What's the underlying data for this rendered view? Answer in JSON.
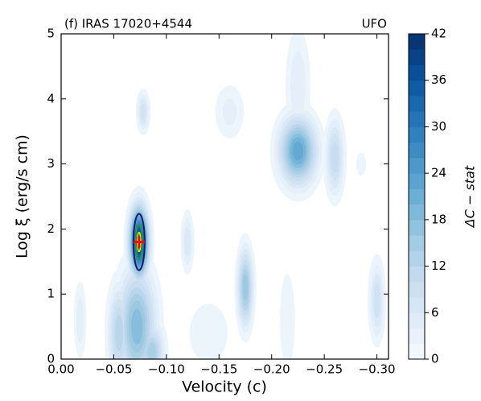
{
  "chart_data": {
    "type": "contour",
    "title": "(f) IRAS 17020+4544",
    "subtitle": "UFO",
    "x_label": "Velocity (c)",
    "y_label": "Log ξ (erg/s cm)",
    "colorbar_label": "ΔC − stat",
    "colormap": "Blues",
    "xlim": [
      0,
      -0.311
    ],
    "xticks": [
      {
        "value": 0,
        "label": "0.00"
      },
      {
        "value": -0.05,
        "label": "−0.05"
      },
      {
        "value": -0.1,
        "label": "−0.10"
      },
      {
        "value": -0.15,
        "label": "−0.15"
      },
      {
        "value": -0.2,
        "label": "−0.20"
      },
      {
        "value": -0.25,
        "label": "−0.25"
      },
      {
        "value": -0.3,
        "label": "−0.30"
      }
    ],
    "ylim": [
      0,
      5
    ],
    "yticks": [
      0,
      1,
      2,
      3,
      4,
      5
    ],
    "clim": [
      0,
      42
    ],
    "cticks": [
      0,
      6,
      12,
      18,
      24,
      30,
      36,
      42
    ],
    "features": [
      {
        "x": -0.074,
        "y": 1.8,
        "x_width": 0.006,
        "y_width": 0.35,
        "peak": 42
      },
      {
        "x": -0.072,
        "y": 0.5,
        "x_width": 0.012,
        "y_width": 0.6,
        "peak": 20
      },
      {
        "x": -0.055,
        "y": 0.4,
        "x_width": 0.007,
        "y_width": 0.5,
        "peak": 14
      },
      {
        "x": -0.086,
        "y": 0.1,
        "x_width": 0.008,
        "y_width": 0.3,
        "peak": 16
      },
      {
        "x": -0.078,
        "y": 3.8,
        "x_width": 0.004,
        "y_width": 0.2,
        "peak": 10
      },
      {
        "x": -0.12,
        "y": 1.8,
        "x_width": 0.004,
        "y_width": 0.3,
        "peak": 8
      },
      {
        "x": -0.018,
        "y": 0.6,
        "x_width": 0.004,
        "y_width": 0.4,
        "peak": 6
      },
      {
        "x": -0.175,
        "y": 1.1,
        "x_width": 0.005,
        "y_width": 0.4,
        "peak": 18
      },
      {
        "x": -0.225,
        "y": 3.2,
        "x_width": 0.012,
        "y_width": 0.35,
        "peak": 24
      },
      {
        "x": -0.225,
        "y": 4.2,
        "x_width": 0.008,
        "y_width": 0.6,
        "peak": 6
      },
      {
        "x": -0.26,
        "y": 3.1,
        "x_width": 0.006,
        "y_width": 0.4,
        "peak": 12
      },
      {
        "x": -0.16,
        "y": 3.8,
        "x_width": 0.01,
        "y_width": 0.3,
        "peak": 5
      },
      {
        "x": -0.3,
        "y": 0.9,
        "x_width": 0.005,
        "y_width": 0.4,
        "peak": 10
      },
      {
        "x": -0.285,
        "y": 3.0,
        "x_width": 0.004,
        "y_width": 0.15,
        "peak": 4
      },
      {
        "x": -0.215,
        "y": 0.6,
        "x_width": 0.006,
        "y_width": 0.6,
        "peak": 4
      },
      {
        "x": -0.14,
        "y": 0.4,
        "x_width": 0.02,
        "y_width": 0.5,
        "peak": 3
      }
    ],
    "best_fit": {
      "x": -0.074,
      "y": 1.8
    }
  }
}
